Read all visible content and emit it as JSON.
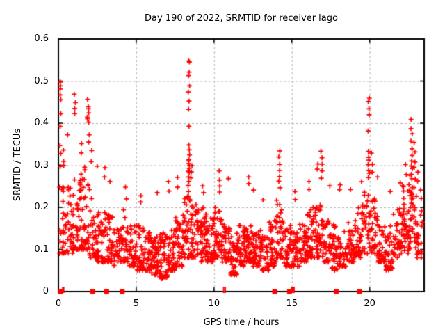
{
  "colors": {
    "marker": "#ff0000",
    "grid": "#b4b4b4",
    "frame": "#000000",
    "background": "#ffffff",
    "text": "#000000"
  },
  "chart_data": {
    "type": "scatter",
    "title": "Day 190 of 2022, SRMTID for receiver lago",
    "xlabel": "GPS time / hours",
    "ylabel": "SRMTID / TECUs",
    "xlim": [
      0,
      23.5
    ],
    "ylim": [
      0,
      0.6
    ],
    "xticks": [
      0,
      5,
      10,
      15,
      20
    ],
    "xtick_labels": [
      "0",
      "5",
      "10",
      "15",
      "20"
    ],
    "yticks": [
      0,
      0.1,
      0.2,
      0.3,
      0.4,
      0.5,
      0.6
    ],
    "ytick_labels": [
      "0",
      "0.1",
      "0.2",
      "0.3",
      "0.4",
      "0.5",
      "0.6"
    ],
    "grid": true,
    "legend_position": "none",
    "marker": {
      "shape": "plus",
      "color": "#ff0000",
      "size": 7,
      "stroke": 1.7
    },
    "seed": 2022190,
    "background_bands": [
      [
        0.05,
        0.5,
        30,
        0.09,
        0.3,
        1.8
      ],
      [
        0.5,
        1.0,
        35,
        0.09,
        0.26,
        1.8
      ],
      [
        1.0,
        1.5,
        40,
        0.1,
        0.28,
        1.7
      ],
      [
        1.5,
        2.0,
        40,
        0.1,
        0.3,
        1.7
      ],
      [
        2.0,
        2.5,
        40,
        0.08,
        0.24,
        1.8
      ],
      [
        2.5,
        3.0,
        35,
        0.07,
        0.2,
        1.8
      ],
      [
        3.0,
        3.5,
        35,
        0.07,
        0.19,
        1.8
      ],
      [
        3.5,
        4.0,
        30,
        0.06,
        0.17,
        1.8
      ],
      [
        4.0,
        4.5,
        35,
        0.07,
        0.2,
        1.8
      ],
      [
        4.5,
        5.0,
        35,
        0.06,
        0.16,
        1.8
      ],
      [
        5.0,
        5.5,
        40,
        0.05,
        0.16,
        1.6
      ],
      [
        5.5,
        6.0,
        40,
        0.05,
        0.14,
        1.6
      ],
      [
        6.0,
        6.5,
        45,
        0.04,
        0.13,
        1.5
      ],
      [
        6.5,
        7.0,
        45,
        0.03,
        0.14,
        1.5
      ],
      [
        7.0,
        7.5,
        45,
        0.05,
        0.15,
        1.5
      ],
      [
        7.5,
        8.0,
        40,
        0.06,
        0.18,
        1.6
      ],
      [
        8.0,
        8.5,
        40,
        0.08,
        0.24,
        1.5
      ],
      [
        8.5,
        9.0,
        40,
        0.08,
        0.22,
        1.6
      ],
      [
        9.0,
        9.5,
        40,
        0.07,
        0.2,
        1.6
      ],
      [
        9.5,
        10.0,
        40,
        0.07,
        0.18,
        1.6
      ],
      [
        10.0,
        10.5,
        35,
        0.08,
        0.2,
        1.6
      ],
      [
        10.5,
        11.0,
        35,
        0.07,
        0.17,
        1.6
      ],
      [
        11.0,
        11.5,
        40,
        0.04,
        0.15,
        1.6
      ],
      [
        11.5,
        12.0,
        40,
        0.06,
        0.16,
        1.6
      ],
      [
        12.0,
        12.5,
        40,
        0.07,
        0.17,
        1.6
      ],
      [
        12.5,
        13.0,
        40,
        0.06,
        0.15,
        1.6
      ],
      [
        13.0,
        13.5,
        35,
        0.05,
        0.14,
        1.6
      ],
      [
        13.5,
        14.0,
        35,
        0.06,
        0.17,
        1.6
      ],
      [
        14.0,
        14.5,
        40,
        0.08,
        0.22,
        1.6
      ],
      [
        14.5,
        15.0,
        35,
        0.06,
        0.16,
        1.7
      ],
      [
        15.0,
        15.5,
        35,
        0.06,
        0.15,
        1.7
      ],
      [
        15.5,
        16.0,
        35,
        0.07,
        0.17,
        1.6
      ],
      [
        16.0,
        16.5,
        40,
        0.08,
        0.2,
        1.6
      ],
      [
        16.5,
        17.0,
        40,
        0.08,
        0.21,
        1.6
      ],
      [
        17.0,
        17.5,
        35,
        0.07,
        0.17,
        1.7
      ],
      [
        17.5,
        18.0,
        35,
        0.05,
        0.16,
        1.7
      ],
      [
        18.0,
        18.5,
        35,
        0.06,
        0.15,
        1.7
      ],
      [
        18.5,
        19.0,
        35,
        0.07,
        0.17,
        1.7
      ],
      [
        19.0,
        19.5,
        35,
        0.08,
        0.2,
        1.6
      ],
      [
        19.5,
        20.0,
        35,
        0.09,
        0.24,
        1.5
      ],
      [
        20.0,
        20.5,
        35,
        0.09,
        0.22,
        1.5
      ],
      [
        20.5,
        21.0,
        35,
        0.07,
        0.17,
        1.6
      ],
      [
        21.0,
        21.5,
        35,
        0.05,
        0.16,
        1.6
      ],
      [
        21.5,
        22.0,
        35,
        0.08,
        0.2,
        1.5
      ],
      [
        22.0,
        22.5,
        40,
        0.09,
        0.26,
        1.4
      ],
      [
        22.5,
        23.0,
        40,
        0.1,
        0.28,
        1.4
      ],
      [
        23.0,
        23.4,
        20,
        0.08,
        0.22,
        1.5
      ]
    ],
    "spike_columns": [
      {
        "x": 0.12,
        "ys": [
          0.5,
          0.49,
          0.48,
          0.47,
          0.455,
          0.425,
          0.395,
          0.345,
          0.33,
          0.3
        ]
      },
      {
        "x": 0.3,
        "ys": [
          0.335,
          0.31
        ]
      },
      {
        "x": 0.63,
        "ys": [
          0.375
        ]
      },
      {
        "x": 1.05,
        "ys": [
          0.47,
          0.45,
          0.435,
          0.42
        ]
      },
      {
        "x": 1.5,
        "ys": [
          0.35,
          0.332
        ]
      },
      {
        "x": 1.9,
        "ys": [
          0.455,
          0.44,
          0.433,
          0.425,
          0.417,
          0.41,
          0.403
        ]
      },
      {
        "x": 1.95,
        "ys": [
          0.374,
          0.355
        ]
      },
      {
        "x": 2.15,
        "ys": [
          0.335,
          0.31
        ]
      },
      {
        "x": 2.5,
        "ys": [
          0.3
        ]
      },
      {
        "x": 3.0,
        "ys": [
          0.295,
          0.275
        ]
      },
      {
        "x": 3.3,
        "ys": [
          0.26
        ]
      },
      {
        "x": 4.35,
        "ys": [
          0.245,
          0.22
        ]
      },
      {
        "x": 5.3,
        "ys": [
          0.23,
          0.21
        ]
      },
      {
        "x": 6.3,
        "ys": [
          0.235
        ]
      },
      {
        "x": 7.1,
        "ys": [
          0.26,
          0.24
        ]
      },
      {
        "x": 7.65,
        "ys": [
          0.27,
          0.25
        ]
      },
      {
        "x": 8.38,
        "ys": [
          0.55,
          0.545,
          0.52,
          0.515,
          0.49,
          0.475,
          0.455,
          0.43,
          0.39,
          0.35,
          0.335,
          0.325,
          0.315,
          0.31,
          0.305,
          0.3,
          0.295,
          0.285,
          0.28,
          0.27,
          0.26,
          0.25
        ]
      },
      {
        "x": 8.55,
        "ys": [
          0.3,
          0.285,
          0.27
        ]
      },
      {
        "x": 9.3,
        "ys": [
          0.25,
          0.235
        ]
      },
      {
        "x": 10.35,
        "ys": [
          0.285,
          0.265,
          0.25,
          0.235
        ]
      },
      {
        "x": 10.9,
        "ys": [
          0.27
        ]
      },
      {
        "x": 12.2,
        "ys": [
          0.27,
          0.255
        ]
      },
      {
        "x": 12.5,
        "ys": [
          0.24
        ]
      },
      {
        "x": 13.1,
        "ys": [
          0.22
        ]
      },
      {
        "x": 14.2,
        "ys": [
          0.335,
          0.32,
          0.305,
          0.29,
          0.275,
          0.26,
          0.245
        ]
      },
      {
        "x": 15.2,
        "ys": [
          0.24,
          0.22
        ]
      },
      {
        "x": 16.1,
        "ys": [
          0.26,
          0.245
        ]
      },
      {
        "x": 16.65,
        "ys": [
          0.305,
          0.29
        ]
      },
      {
        "x": 16.9,
        "ys": [
          0.335,
          0.32,
          0.3,
          0.285,
          0.27
        ]
      },
      {
        "x": 17.4,
        "ys": [
          0.25
        ]
      },
      {
        "x": 18.1,
        "ys": [
          0.255,
          0.24
        ]
      },
      {
        "x": 18.8,
        "ys": [
          0.24
        ]
      },
      {
        "x": 19.5,
        "ys": [
          0.26
        ]
      },
      {
        "x": 19.95,
        "ys": [
          0.46,
          0.45,
          0.435,
          0.42,
          0.38,
          0.335,
          0.32,
          0.31,
          0.3,
          0.29,
          0.28,
          0.27
        ]
      },
      {
        "x": 20.15,
        "ys": [
          0.33,
          0.3,
          0.285
        ]
      },
      {
        "x": 20.5,
        "ys": [
          0.27
        ]
      },
      {
        "x": 21.3,
        "ys": [
          0.24
        ]
      },
      {
        "x": 22.0,
        "ys": [
          0.26
        ]
      },
      {
        "x": 22.35,
        "ys": [
          0.3,
          0.28
        ]
      },
      {
        "x": 22.7,
        "ys": [
          0.41,
          0.39,
          0.375,
          0.355,
          0.34,
          0.325,
          0.31,
          0.3,
          0.29,
          0.28,
          0.27
        ]
      },
      {
        "x": 22.9,
        "ys": [
          0.355,
          0.33,
          0.31,
          0.295,
          0.27,
          0.25
        ]
      },
      {
        "x": 23.1,
        "ys": [
          0.285,
          0.26
        ]
      },
      {
        "x": 23.3,
        "ys": [
          0.24,
          0.22
        ]
      }
    ],
    "baseline_markers": {
      "squares": [
        0.12,
        2.2,
        3.1,
        4.1,
        13.9,
        14.85,
        17.85,
        19.35
      ],
      "bars": [
        0.28,
        0.34,
        10.62,
        10.72,
        14.98,
        15.06,
        15.14
      ]
    }
  }
}
